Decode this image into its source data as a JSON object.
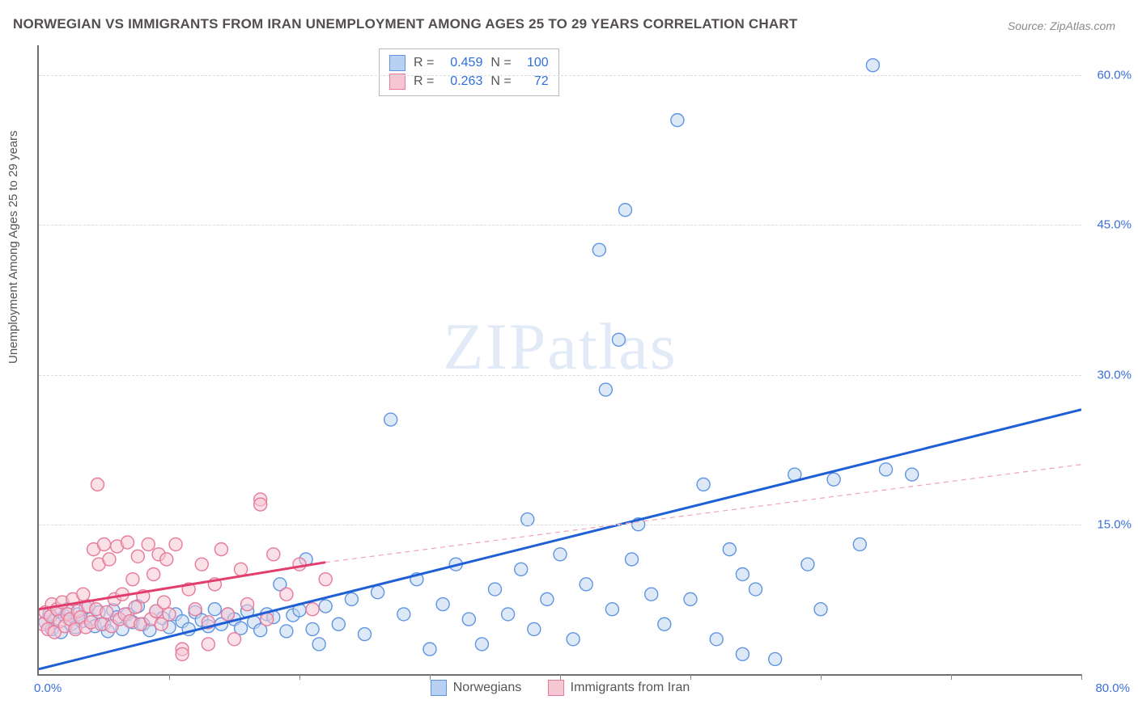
{
  "title": "NORWEGIAN VS IMMIGRANTS FROM IRAN UNEMPLOYMENT AMONG AGES 25 TO 29 YEARS CORRELATION CHART",
  "source": "Source: ZipAtlas.com",
  "ylabel": "Unemployment Among Ages 25 to 29 years",
  "watermark": "ZIPatlas",
  "chart": {
    "type": "scatter",
    "background_color": "#ffffff",
    "grid_color": "#dcdcdc",
    "axis_color": "#6f6f6f",
    "label_color": "#3a6fd8",
    "title_color": "#544f4f",
    "title_fontsize": 17,
    "label_fontsize": 15,
    "xlim": [
      0,
      80
    ],
    "ylim": [
      0,
      63
    ],
    "y_ticks": [
      15.0,
      30.0,
      45.0,
      60.0
    ],
    "y_tick_labels": [
      "15.0%",
      "30.0%",
      "45.0%",
      "60.0%"
    ],
    "x_tick_positions": [
      10,
      20,
      30,
      40,
      50,
      60,
      70,
      80
    ],
    "x_origin_label": "0.0%",
    "x_end_label": "80.0%",
    "marker_radius": 8,
    "marker_stroke_width": 1.4,
    "trend_line_width_solid": 3,
    "trend_line_width_dashed": 1.2,
    "series": [
      {
        "name": "Norwegians",
        "fill": "#c3d7f3",
        "stroke": "#5f95e0",
        "fill_opacity": 0.55,
        "swatch_fill": "#b8d1f2",
        "swatch_border": "#5f95e0",
        "R": "0.459",
        "N": "100",
        "trend": {
          "x1": 0,
          "y1": 0.5,
          "x2": 80,
          "y2": 26.5,
          "color": "#1f5fd6",
          "dash": "none",
          "extend_dash": false
        },
        "points": [
          [
            0.5,
            5.2
          ],
          [
            0.8,
            6.0
          ],
          [
            1.0,
            4.5
          ],
          [
            1.2,
            5.5
          ],
          [
            1.5,
            6.3
          ],
          [
            1.7,
            4.2
          ],
          [
            2.0,
            5.8
          ],
          [
            2.2,
            6.5
          ],
          [
            2.5,
            5.0
          ],
          [
            2.8,
            4.7
          ],
          [
            3.0,
            6.0
          ],
          [
            3.3,
            5.3
          ],
          [
            3.6,
            6.7
          ],
          [
            4.0,
            5.5
          ],
          [
            4.3,
            4.8
          ],
          [
            4.6,
            6.2
          ],
          [
            5.0,
            5.0
          ],
          [
            5.3,
            4.3
          ],
          [
            5.7,
            6.4
          ],
          [
            6.0,
            5.7
          ],
          [
            6.4,
            4.5
          ],
          [
            6.8,
            6.0
          ],
          [
            7.2,
            5.2
          ],
          [
            7.6,
            6.8
          ],
          [
            8.0,
            5.0
          ],
          [
            8.5,
            4.4
          ],
          [
            9.0,
            6.3
          ],
          [
            9.5,
            5.6
          ],
          [
            10.0,
            4.7
          ],
          [
            10.5,
            6.0
          ],
          [
            11.0,
            5.3
          ],
          [
            11.5,
            4.5
          ],
          [
            12.0,
            6.2
          ],
          [
            12.5,
            5.4
          ],
          [
            13.0,
            4.8
          ],
          [
            13.5,
            6.5
          ],
          [
            14.0,
            5.0
          ],
          [
            14.5,
            6.0
          ],
          [
            15.0,
            5.5
          ],
          [
            15.5,
            4.6
          ],
          [
            16.0,
            6.3
          ],
          [
            16.5,
            5.2
          ],
          [
            17.0,
            4.4
          ],
          [
            17.5,
            6.0
          ],
          [
            18.0,
            5.7
          ],
          [
            18.5,
            9.0
          ],
          [
            19.0,
            4.3
          ],
          [
            19.5,
            5.9
          ],
          [
            20.0,
            6.4
          ],
          [
            20.5,
            11.5
          ],
          [
            21.0,
            4.5
          ],
          [
            21.5,
            3.0
          ],
          [
            22.0,
            6.8
          ],
          [
            23.0,
            5.0
          ],
          [
            24.0,
            7.5
          ],
          [
            25.0,
            4.0
          ],
          [
            26.0,
            8.2
          ],
          [
            27.0,
            25.5
          ],
          [
            28.0,
            6.0
          ],
          [
            29.0,
            9.5
          ],
          [
            30.0,
            2.5
          ],
          [
            31.0,
            7.0
          ],
          [
            32.0,
            11.0
          ],
          [
            33.0,
            5.5
          ],
          [
            34.0,
            3.0
          ],
          [
            35.0,
            8.5
          ],
          [
            36.0,
            6.0
          ],
          [
            37.0,
            10.5
          ],
          [
            37.5,
            15.5
          ],
          [
            38.0,
            4.5
          ],
          [
            39.0,
            7.5
          ],
          [
            40.0,
            12.0
          ],
          [
            41.0,
            3.5
          ],
          [
            42.0,
            9.0
          ],
          [
            43.0,
            42.5
          ],
          [
            43.5,
            28.5
          ],
          [
            44.0,
            6.5
          ],
          [
            44.5,
            33.5
          ],
          [
            45.0,
            46.5
          ],
          [
            45.5,
            11.5
          ],
          [
            47.0,
            8.0
          ],
          [
            48.0,
            5.0
          ],
          [
            49.0,
            55.5
          ],
          [
            50.0,
            7.5
          ],
          [
            51.0,
            19.0
          ],
          [
            52.0,
            3.5
          ],
          [
            53.0,
            12.5
          ],
          [
            54.0,
            10.0
          ],
          [
            55.0,
            8.5
          ],
          [
            56.5,
            1.5
          ],
          [
            58.0,
            20.0
          ],
          [
            59.0,
            11.0
          ],
          [
            60.0,
            6.5
          ],
          [
            61.0,
            19.5
          ],
          [
            63.0,
            13.0
          ],
          [
            64.0,
            61.0
          ],
          [
            65.0,
            20.5
          ],
          [
            67.0,
            20.0
          ],
          [
            54.0,
            2.0
          ],
          [
            46.0,
            15.0
          ]
        ]
      },
      {
        "name": "Immigrants from Iran",
        "fill": "#f6c7d3",
        "stroke": "#e77a9a",
        "fill_opacity": 0.55,
        "swatch_fill": "#f6c7d3",
        "swatch_border": "#e77a9a",
        "R": "0.263",
        "N": "72",
        "trend": {
          "x1": 0,
          "y1": 6.5,
          "x2": 22,
          "y2": 11.2,
          "color": "#e23d6d",
          "dash": "none",
          "extend_dash": true,
          "ext_x2": 80,
          "ext_y2": 21.0,
          "ext_color": "#f0a3b8"
        },
        "points": [
          [
            0.3,
            5.0
          ],
          [
            0.5,
            6.2
          ],
          [
            0.7,
            4.5
          ],
          [
            0.9,
            5.8
          ],
          [
            1.0,
            7.0
          ],
          [
            1.2,
            4.2
          ],
          [
            1.4,
            6.5
          ],
          [
            1.6,
            5.3
          ],
          [
            1.8,
            7.2
          ],
          [
            2.0,
            4.8
          ],
          [
            2.2,
            6.0
          ],
          [
            2.4,
            5.5
          ],
          [
            2.6,
            7.5
          ],
          [
            2.8,
            4.5
          ],
          [
            3.0,
            6.3
          ],
          [
            3.2,
            5.7
          ],
          [
            3.4,
            8.0
          ],
          [
            3.6,
            4.7
          ],
          [
            3.8,
            6.8
          ],
          [
            4.0,
            5.2
          ],
          [
            4.2,
            12.5
          ],
          [
            4.4,
            6.5
          ],
          [
            4.6,
            11.0
          ],
          [
            4.8,
            5.0
          ],
          [
            5.0,
            13.0
          ],
          [
            5.2,
            6.2
          ],
          [
            5.4,
            11.5
          ],
          [
            5.6,
            4.8
          ],
          [
            5.8,
            7.5
          ],
          [
            6.0,
            12.8
          ],
          [
            6.2,
            5.5
          ],
          [
            6.4,
            8.0
          ],
          [
            6.6,
            6.0
          ],
          [
            6.8,
            13.2
          ],
          [
            7.0,
            5.3
          ],
          [
            7.2,
            9.5
          ],
          [
            7.4,
            6.7
          ],
          [
            7.6,
            11.8
          ],
          [
            7.8,
            5.0
          ],
          [
            8.0,
            7.8
          ],
          [
            4.5,
            19.0
          ],
          [
            8.4,
            13.0
          ],
          [
            8.6,
            5.5
          ],
          [
            8.8,
            10.0
          ],
          [
            9.0,
            6.3
          ],
          [
            9.2,
            12.0
          ],
          [
            9.4,
            5.0
          ],
          [
            9.6,
            7.2
          ],
          [
            9.8,
            11.5
          ],
          [
            10.0,
            6.0
          ],
          [
            10.5,
            13.0
          ],
          [
            11.0,
            2.5
          ],
          [
            11.5,
            8.5
          ],
          [
            12.0,
            6.5
          ],
          [
            12.5,
            11.0
          ],
          [
            13.0,
            5.2
          ],
          [
            13.5,
            9.0
          ],
          [
            14.0,
            12.5
          ],
          [
            14.5,
            6.0
          ],
          [
            15.0,
            3.5
          ],
          [
            15.5,
            10.5
          ],
          [
            16.0,
            7.0
          ],
          [
            17.0,
            17.5
          ],
          [
            17.5,
            5.5
          ],
          [
            18.0,
            12.0
          ],
          [
            19.0,
            8.0
          ],
          [
            20.0,
            11.0
          ],
          [
            17.0,
            17.0
          ],
          [
            21.0,
            6.5
          ],
          [
            22.0,
            9.5
          ],
          [
            11.0,
            2.0
          ],
          [
            13.0,
            3.0
          ]
        ]
      }
    ]
  },
  "legend": {
    "series1_label": "Norwegians",
    "series2_label": "Immigrants from Iran"
  },
  "corr_labels": {
    "R": "R =",
    "N": "N ="
  }
}
